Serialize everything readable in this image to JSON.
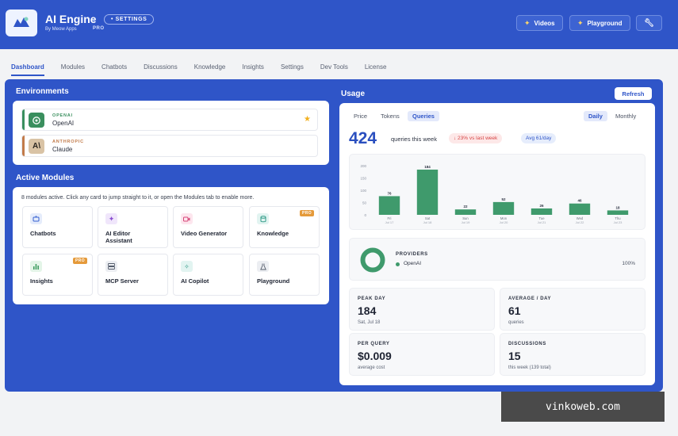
{
  "header": {
    "title": "AI Engine",
    "settings_pill": "• SETTINGS",
    "byline": "By Meow Apps",
    "pro": "PRO",
    "buttons": {
      "videos": "Videos",
      "playground": "Playground"
    }
  },
  "tabs": [
    "Dashboard",
    "Modules",
    "Chatbots",
    "Discussions",
    "Knowledge",
    "Insights",
    "Settings",
    "Dev Tools",
    "License"
  ],
  "environments": {
    "title": "Environments",
    "items": [
      {
        "label": "OPENAI",
        "name": "OpenAI",
        "color": "#3a8f5e"
      },
      {
        "label": "ANTHROPIC",
        "name": "Claude",
        "color": "#c27b4a"
      }
    ]
  },
  "modules": {
    "title": "Active Modules",
    "description": "8 modules active. Click any card to jump straight to it, or open the Modules tab to enable more.",
    "pro_badge": "PRO",
    "items": [
      {
        "name": "Chatbots",
        "icon": "chat-bot-icon",
        "pro": false
      },
      {
        "name": "AI Editor Assistant",
        "icon": "sparkle-icon",
        "pro": false
      },
      {
        "name": "Video Generator",
        "icon": "video-icon",
        "pro": false
      },
      {
        "name": "Knowledge",
        "icon": "database-icon",
        "pro": true
      },
      {
        "name": "Insights",
        "icon": "bar-chart-icon",
        "pro": true
      },
      {
        "name": "MCP Server",
        "icon": "server-icon",
        "pro": false
      },
      {
        "name": "AI Copilot",
        "icon": "wand-icon",
        "pro": false
      },
      {
        "name": "Playground",
        "icon": "flask-icon",
        "pro": false
      }
    ]
  },
  "usage": {
    "title": "Usage",
    "refresh": "Refresh",
    "metric_tabs": [
      "Price",
      "Tokens",
      "Queries"
    ],
    "active_metric": "Queries",
    "period_tabs": [
      "Daily",
      "Monthly"
    ],
    "active_period": "Daily",
    "total": "424",
    "total_label": "queries this week",
    "change": "↓ 23% vs last week",
    "avg": "Avg 61/day",
    "providers": {
      "title": "PROVIDERS",
      "name": "OpenAI",
      "percent": "100%"
    },
    "stats": [
      {
        "label": "PEAK DAY",
        "value": "184",
        "sub": "Sat, Jul 18"
      },
      {
        "label": "AVERAGE / DAY",
        "value": "61",
        "sub": "queries"
      },
      {
        "label": "PER QUERY",
        "value": "$0.009",
        "sub": "average cost"
      },
      {
        "label": "DISCUSSIONS",
        "value": "15",
        "sub": "this week (139 total)"
      }
    ]
  },
  "chart_data": {
    "type": "bar",
    "days": [
      "Fri",
      "Sat",
      "Sun",
      "Mon",
      "Tue",
      "Wed",
      "Thu"
    ],
    "dates": [
      "Jul 17",
      "Jul 18",
      "Jul 19",
      "Jul 20",
      "Jul 21",
      "Jul 22",
      "Jul 23"
    ],
    "values": [
      76,
      184,
      22,
      52,
      26,
      46,
      18
    ],
    "yticks": [
      0,
      50,
      100,
      150,
      200
    ],
    "ylim": [
      0,
      200
    ],
    "color": "#3f9a6c"
  },
  "watermark": "vinkoweb.com",
  "colors": {
    "brand": "#2f55c8",
    "bar": "#3f9a6c",
    "star": "#f2b01e"
  }
}
